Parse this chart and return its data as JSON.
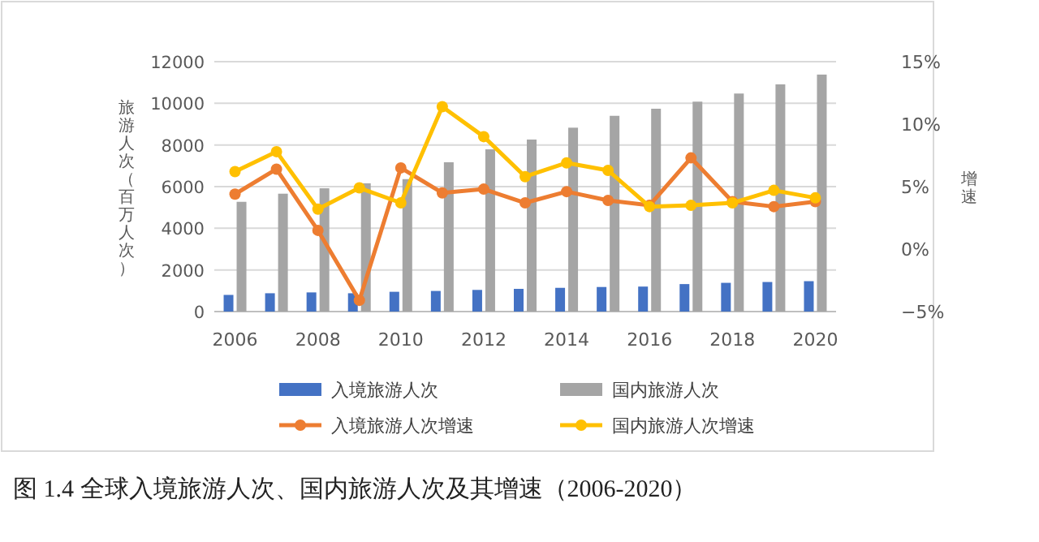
{
  "chart_data": {
    "type": "bar",
    "ylabel": "旅游人次（百万人次）",
    "y2label": "增速",
    "categories": [
      "2006",
      null,
      "2008",
      null,
      "2010",
      null,
      "2012",
      null,
      "2014",
      null,
      "2016",
      null,
      "2018",
      null,
      "2020"
    ],
    "series": [
      {
        "name": "入境旅游人次",
        "color": "#4472c4",
        "values": [
          800,
          880,
          920,
          880,
          950,
          990,
          1040,
          1090,
          1140,
          1180,
          1200,
          1320,
          1380,
          1420,
          1460
        ]
      },
      {
        "name": "国内旅游人次",
        "color": "#a5a5a5",
        "values": [
          5270,
          5660,
          5920,
          6160,
          6360,
          7170,
          7790,
          8260,
          8830,
          9400,
          9740,
          10080,
          10470,
          10910,
          11380
        ]
      },
      {
        "name": "入境旅游人次增速",
        "type": "line",
        "axis": "y2",
        "color": "#ed7d31",
        "values": [
          4.4,
          6.4,
          1.5,
          -4.1,
          6.5,
          4.5,
          4.8,
          3.7,
          4.6,
          3.9,
          3.5,
          7.3,
          3.8,
          3.4,
          3.8
        ]
      },
      {
        "name": "国内旅游人次增速",
        "type": "line",
        "axis": "y2",
        "color": "#ffc000",
        "values": [
          6.2,
          7.8,
          3.2,
          4.9,
          3.7,
          11.4,
          9.0,
          5.8,
          6.9,
          6.3,
          3.4,
          3.5,
          3.7,
          4.7,
          4.1
        ]
      }
    ],
    "ylim": [
      0,
      12000
    ],
    "yticks": [
      0,
      2000,
      4000,
      6000,
      8000,
      10000,
      12000
    ],
    "y2lim": [
      -5,
      15
    ],
    "y2ticks": [
      {
        "value": -5,
        "label": "−5%"
      },
      {
        "value": 0,
        "label": "0%"
      },
      {
        "value": 5,
        "label": "5%"
      },
      {
        "value": 10,
        "label": "10%"
      },
      {
        "value": 15,
        "label": "15%"
      }
    ],
    "grid": "y",
    "legend": "bottom",
    "marker": "circle",
    "line_style": "solid",
    "annotations": [
      "图 1.4  全球入境旅游人次、国内旅游人次及其增速（2006-2020）"
    ]
  }
}
